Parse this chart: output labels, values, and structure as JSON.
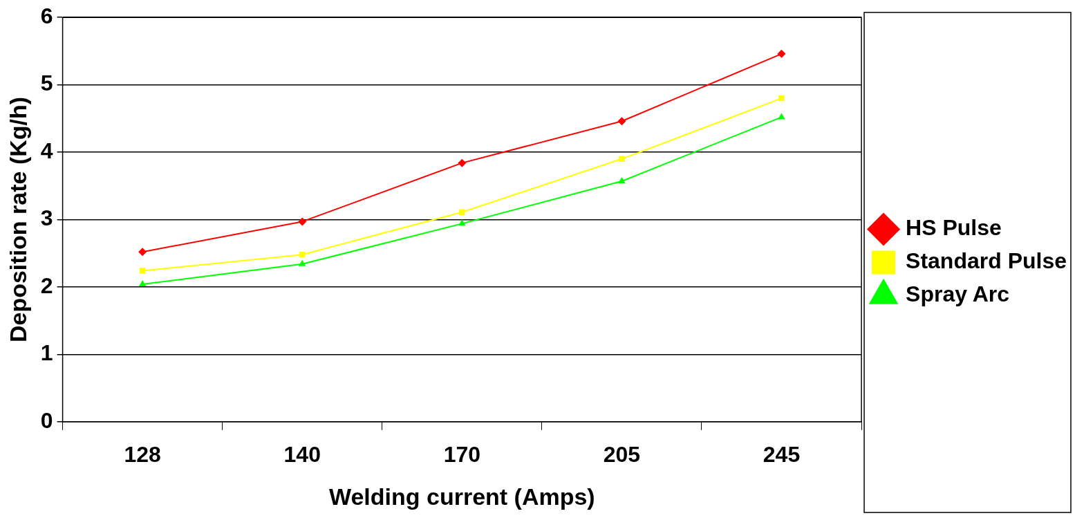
{
  "chart_data": {
    "type": "line",
    "xlabel": "Welding current (Amps)",
    "ylabel": "Deposition rate (Kg/h)",
    "categories": [
      "128",
      "140",
      "170",
      "205",
      "245"
    ],
    "series": [
      {
        "name": "HS Pulse",
        "color": "#ff0000",
        "marker": "diamond",
        "values": [
          2.52,
          2.97,
          3.84,
          4.46,
          5.46
        ]
      },
      {
        "name": "Standard Pulse",
        "color": "#ffff00",
        "marker": "square",
        "values": [
          2.24,
          2.48,
          3.11,
          3.9,
          4.8
        ]
      },
      {
        "name": "Spray Arc",
        "color": "#00ff00",
        "marker": "triangle",
        "values": [
          2.04,
          2.34,
          2.94,
          3.57,
          4.52
        ]
      }
    ],
    "ylim": [
      0,
      6
    ],
    "yticks": [
      0,
      1,
      2,
      3,
      4,
      5,
      6
    ],
    "grid": "y",
    "legend": "right",
    "line_style": "solid"
  }
}
